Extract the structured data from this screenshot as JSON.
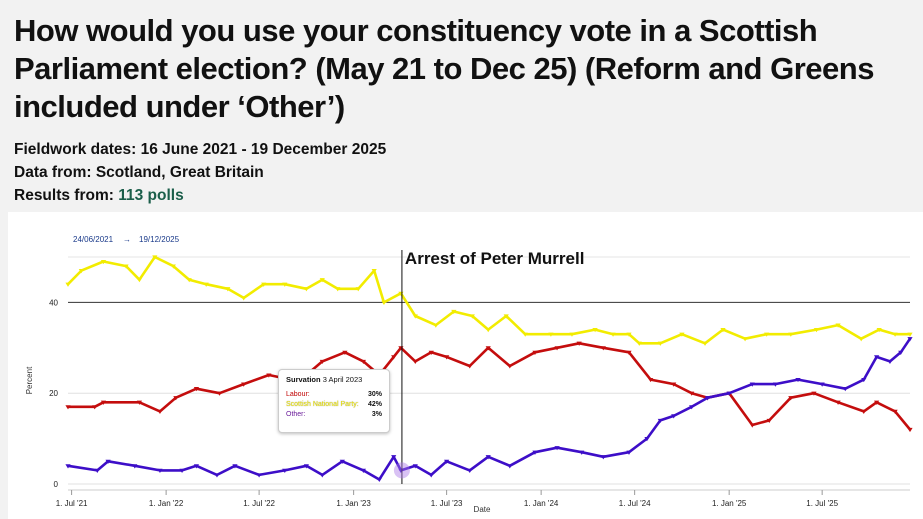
{
  "header": {
    "title": "How would you use your constituency vote in a Scottish Parliament election? (May 21 to Dec 25) (Reform and Greens included under ‘Other’)",
    "fieldwork_label": "Fieldwork dates:",
    "fieldwork_value": "16 June 2021 - 19 December 2025",
    "data_label": "Data from:",
    "data_value": "Scotland, Great Britain",
    "results_label": "Results from:",
    "results_value": "113 polls"
  },
  "range": {
    "start": "24/06/2021",
    "arrow": "→",
    "end": "19/12/2025"
  },
  "annotation": {
    "label": "Arrest of Peter Murrell",
    "date": "2023-04-05"
  },
  "tooltip": {
    "pollster": "Survation",
    "date": "3 April 2023",
    "rows": [
      {
        "name": "Labour:",
        "value": "30%",
        "color": "#c00000"
      },
      {
        "name": "Scottish National Party:",
        "value": "42%",
        "color": "#e8e000"
      },
      {
        "name": "Other:",
        "value": "3%",
        "color": "#6a1b9a"
      }
    ]
  },
  "chart_data": {
    "type": "line",
    "xlabel": "Date",
    "ylabel": "Percent",
    "ylim": [
      0,
      50
    ],
    "y_ticks": [
      0,
      20,
      40
    ],
    "x_ticks": [
      {
        "date": "2021-07-01",
        "label": "1. Jul '21"
      },
      {
        "date": "2022-01-01",
        "label": "1. Jan '22"
      },
      {
        "date": "2022-07-01",
        "label": "1. Jul '22"
      },
      {
        "date": "2023-01-01",
        "label": "1. Jan '23"
      },
      {
        "date": "2023-07-01",
        "label": "1. Jul '23"
      },
      {
        "date": "2024-01-01",
        "label": "1. Jan '24"
      },
      {
        "date": "2024-07-01",
        "label": "1. Jul '24"
      },
      {
        "date": "2025-01-01",
        "label": "1. Jan '25"
      },
      {
        "date": "2025-07-01",
        "label": "1. Jul '25"
      }
    ],
    "xlim": [
      "2021-06-24",
      "2025-12-19"
    ],
    "series": [
      {
        "name": "Scottish National Party",
        "color": "#f2ec00",
        "points": [
          [
            "2021-06-24",
            44
          ],
          [
            "2021-07-20",
            47
          ],
          [
            "2021-09-01",
            49
          ],
          [
            "2021-10-15",
            48
          ],
          [
            "2021-11-10",
            45
          ],
          [
            "2021-12-10",
            50
          ],
          [
            "2022-01-15",
            48
          ],
          [
            "2022-02-15",
            45
          ],
          [
            "2022-03-20",
            44
          ],
          [
            "2022-05-01",
            43
          ],
          [
            "2022-06-01",
            41
          ],
          [
            "2022-07-10",
            44
          ],
          [
            "2022-08-20",
            44
          ],
          [
            "2022-10-01",
            43
          ],
          [
            "2022-11-01",
            45
          ],
          [
            "2022-12-01",
            43
          ],
          [
            "2023-01-10",
            43
          ],
          [
            "2023-02-10",
            47
          ],
          [
            "2023-03-01",
            40
          ],
          [
            "2023-04-03",
            42
          ],
          [
            "2023-05-01",
            37
          ],
          [
            "2023-06-10",
            35
          ],
          [
            "2023-07-15",
            38
          ],
          [
            "2023-08-20",
            37
          ],
          [
            "2023-09-20",
            34
          ],
          [
            "2023-10-25",
            37
          ],
          [
            "2023-12-01",
            33
          ],
          [
            "2024-01-20",
            33
          ],
          [
            "2024-03-01",
            33
          ],
          [
            "2024-04-15",
            34
          ],
          [
            "2024-05-20",
            33
          ],
          [
            "2024-06-20",
            33
          ],
          [
            "2024-07-10",
            31
          ],
          [
            "2024-08-20",
            31
          ],
          [
            "2024-10-01",
            33
          ],
          [
            "2024-11-15",
            31
          ],
          [
            "2024-12-20",
            34
          ],
          [
            "2025-02-01",
            32
          ],
          [
            "2025-03-15",
            33
          ],
          [
            "2025-05-01",
            33
          ],
          [
            "2025-06-20",
            34
          ],
          [
            "2025-08-01",
            35
          ],
          [
            "2025-09-15",
            32
          ],
          [
            "2025-10-20",
            34
          ],
          [
            "2025-11-20",
            33
          ],
          [
            "2025-12-19",
            33
          ]
        ]
      },
      {
        "name": "Labour",
        "color": "#c40d0d",
        "points": [
          [
            "2021-06-24",
            17
          ],
          [
            "2021-08-15",
            17
          ],
          [
            "2021-09-01",
            18
          ],
          [
            "2021-11-10",
            18
          ],
          [
            "2021-12-20",
            16
          ],
          [
            "2022-01-20",
            19
          ],
          [
            "2022-03-01",
            21
          ],
          [
            "2022-04-15",
            20
          ],
          [
            "2022-06-01",
            22
          ],
          [
            "2022-07-20",
            24
          ],
          [
            "2022-09-01",
            23
          ],
          [
            "2022-10-01",
            24
          ],
          [
            "2022-11-01",
            27
          ],
          [
            "2022-12-15",
            29
          ],
          [
            "2023-01-20",
            27
          ],
          [
            "2023-02-20",
            24
          ],
          [
            "2023-03-20",
            28
          ],
          [
            "2023-04-03",
            30
          ],
          [
            "2023-05-01",
            27
          ],
          [
            "2023-06-01",
            29
          ],
          [
            "2023-07-01",
            28
          ],
          [
            "2023-08-15",
            26
          ],
          [
            "2023-09-20",
            30
          ],
          [
            "2023-11-01",
            26
          ],
          [
            "2023-12-20",
            29
          ],
          [
            "2024-02-01",
            30
          ],
          [
            "2024-03-15",
            31
          ],
          [
            "2024-05-01",
            30
          ],
          [
            "2024-06-20",
            29
          ],
          [
            "2024-08-01",
            23
          ],
          [
            "2024-09-15",
            22
          ],
          [
            "2024-10-20",
            20
          ],
          [
            "2024-11-20",
            19
          ],
          [
            "2025-01-01",
            20
          ],
          [
            "2025-02-15",
            13
          ],
          [
            "2025-03-20",
            14
          ],
          [
            "2025-05-01",
            19
          ],
          [
            "2025-06-15",
            20
          ],
          [
            "2025-08-01",
            18
          ],
          [
            "2025-09-20",
            16
          ],
          [
            "2025-10-15",
            18
          ],
          [
            "2025-11-20",
            16
          ],
          [
            "2025-12-19",
            12
          ]
        ]
      },
      {
        "name": "Other",
        "color": "#3d0ec8",
        "points": [
          [
            "2021-06-24",
            4
          ],
          [
            "2021-08-20",
            3
          ],
          [
            "2021-09-10",
            5
          ],
          [
            "2021-11-01",
            4
          ],
          [
            "2021-12-20",
            3
          ],
          [
            "2022-02-01",
            3
          ],
          [
            "2022-03-01",
            4
          ],
          [
            "2022-04-10",
            2
          ],
          [
            "2022-05-15",
            4
          ],
          [
            "2022-07-01",
            2
          ],
          [
            "2022-08-20",
            3
          ],
          [
            "2022-10-01",
            4
          ],
          [
            "2022-11-01",
            2
          ],
          [
            "2022-12-10",
            5
          ],
          [
            "2023-01-20",
            3
          ],
          [
            "2023-02-20",
            1
          ],
          [
            "2023-03-20",
            6
          ],
          [
            "2023-04-03",
            3
          ],
          [
            "2023-05-01",
            4
          ],
          [
            "2023-06-01",
            2
          ],
          [
            "2023-07-01",
            5
          ],
          [
            "2023-08-15",
            3
          ],
          [
            "2023-09-20",
            6
          ],
          [
            "2023-11-01",
            4
          ],
          [
            "2023-12-20",
            7
          ],
          [
            "2024-02-01",
            8
          ],
          [
            "2024-03-20",
            7
          ],
          [
            "2024-05-01",
            6
          ],
          [
            "2024-06-20",
            7
          ],
          [
            "2024-07-25",
            10
          ],
          [
            "2024-08-20",
            14
          ],
          [
            "2024-09-15",
            15
          ],
          [
            "2024-10-20",
            17
          ],
          [
            "2024-11-20",
            19
          ],
          [
            "2025-01-01",
            20
          ],
          [
            "2025-02-15",
            22
          ],
          [
            "2025-04-01",
            22
          ],
          [
            "2025-05-15",
            23
          ],
          [
            "2025-07-01",
            22
          ],
          [
            "2025-08-15",
            21
          ],
          [
            "2025-09-20",
            23
          ],
          [
            "2025-10-15",
            28
          ],
          [
            "2025-11-10",
            27
          ],
          [
            "2025-12-01",
            29
          ],
          [
            "2025-12-19",
            32
          ]
        ]
      }
    ]
  }
}
